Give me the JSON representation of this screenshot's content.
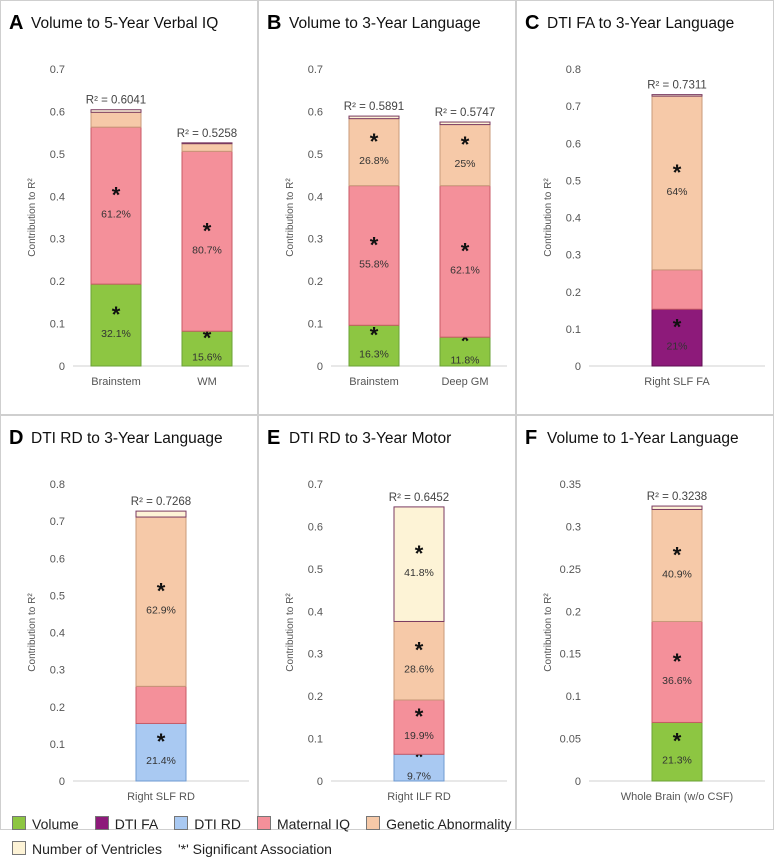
{
  "legend": {
    "items": [
      {
        "name": "Volume",
        "color": "#8dc642"
      },
      {
        "name": "DTI FA",
        "color": "#8d1a7a"
      },
      {
        "name": "DTI RD",
        "color": "#a9c9f2"
      },
      {
        "name": "Maternal IQ",
        "color": "#f4909a"
      },
      {
        "name": "Genetic Abnormality",
        "color": "#f6c9a8"
      },
      {
        "name": "Number of Ventricles",
        "color": "#fdf3d6"
      }
    ],
    "significance_note": "'*' Significant Association"
  },
  "chart_data": [
    {
      "letter": "A",
      "title": "Volume to 5-Year Verbal  IQ",
      "type": "bar",
      "ylabel": "Contribution to R²",
      "ylim": [
        0,
        0.7
      ],
      "yticks": [
        "0",
        "0.1",
        "0.2",
        "0.3",
        "0.4",
        "0.5",
        "0.6",
        "0.7"
      ],
      "bars": [
        {
          "category": "Brainstem",
          "r2_label": "R² = 0.6041",
          "segments": [
            {
              "factor": "Volume",
              "value": 0.193,
              "label": "32.1%",
              "significant": true
            },
            {
              "factor": "Maternal IQ",
              "value": 0.37,
              "label": "61.2%",
              "significant": true
            },
            {
              "factor": "Genetic Abnormality",
              "value": 0.035,
              "label": "",
              "significant": false
            },
            {
              "factor": "Number of Ventricles",
              "value": 0.006,
              "label": "",
              "significant": false
            }
          ]
        },
        {
          "category": "WM",
          "r2_label": "R² = 0.5258",
          "segments": [
            {
              "factor": "Volume",
              "value": 0.082,
              "label": "15.6%",
              "significant": true
            },
            {
              "factor": "Maternal IQ",
              "value": 0.424,
              "label": "80.7%",
              "significant": true
            },
            {
              "factor": "Genetic Abnormality",
              "value": 0.018,
              "label": "",
              "significant": false
            },
            {
              "factor": "Number of Ventricles",
              "value": 0.002,
              "label": "",
              "significant": false
            }
          ]
        }
      ]
    },
    {
      "letter": "B",
      "title": "Volume to 3-Year Language",
      "type": "bar",
      "ylabel": "Contribution to R²",
      "ylim": [
        0,
        0.7
      ],
      "yticks": [
        "0",
        "0.1",
        "0.2",
        "0.3",
        "0.4",
        "0.5",
        "0.6",
        "0.7"
      ],
      "bars": [
        {
          "category": "Brainstem",
          "r2_label": "R² = 0.5891",
          "segments": [
            {
              "factor": "Volume",
              "value": 0.096,
              "label": "16.3%",
              "significant": true
            },
            {
              "factor": "Maternal IQ",
              "value": 0.329,
              "label": "55.8%",
              "significant": true
            },
            {
              "factor": "Genetic Abnormality",
              "value": 0.158,
              "label": "26.8%",
              "significant": true
            },
            {
              "factor": "Number of Ventricles",
              "value": 0.006,
              "label": "",
              "significant": false
            }
          ]
        },
        {
          "category": "Deep GM",
          "r2_label": "R² = 0.5747",
          "segments": [
            {
              "factor": "Volume",
              "value": 0.068,
              "label": "11.8%",
              "significant": true
            },
            {
              "factor": "Maternal IQ",
              "value": 0.357,
              "label": "62.1%",
              "significant": true
            },
            {
              "factor": "Genetic Abnormality",
              "value": 0.144,
              "label": "25%",
              "significant": true
            },
            {
              "factor": "Number of Ventricles",
              "value": 0.006,
              "label": "",
              "significant": false
            }
          ]
        }
      ]
    },
    {
      "letter": "C",
      "title": "DTI FA to 3-Year Language",
      "type": "bar",
      "ylabel": "Contribution to R²",
      "ylim": [
        0,
        0.8
      ],
      "yticks": [
        "0",
        "0.1",
        "0.2",
        "0.3",
        "0.4",
        "0.5",
        "0.6",
        "0.7",
        "0.8"
      ],
      "bars": [
        {
          "category": "Right SLF FA",
          "r2_label": "R² = 0.7311",
          "segments": [
            {
              "factor": "DTI FA",
              "value": 0.153,
              "label": "21%",
              "significant": true
            },
            {
              "factor": "Maternal IQ",
              "value": 0.106,
              "label": "",
              "significant": false
            },
            {
              "factor": "Genetic Abnormality",
              "value": 0.468,
              "label": "64%",
              "significant": true
            },
            {
              "factor": "Number of Ventricles",
              "value": 0.004,
              "label": "",
              "significant": false
            }
          ]
        }
      ]
    },
    {
      "letter": "D",
      "title": "DTI RD to 3-Year Language",
      "type": "bar",
      "ylabel": "Contribution to R²",
      "ylim": [
        0,
        0.8
      ],
      "yticks": [
        "0",
        "0.1",
        "0.2",
        "0.3",
        "0.4",
        "0.5",
        "0.6",
        "0.7",
        "0.8"
      ],
      "bars": [
        {
          "category": "Right SLF RD",
          "r2_label": "R² = 0.7268",
          "segments": [
            {
              "factor": "DTI RD",
              "value": 0.155,
              "label": "21.4%",
              "significant": true
            },
            {
              "factor": "Maternal IQ",
              "value": 0.1,
              "label": "",
              "significant": false
            },
            {
              "factor": "Genetic Abnormality",
              "value": 0.456,
              "label": "62.9%",
              "significant": true
            },
            {
              "factor": "Number of Ventricles",
              "value": 0.016,
              "label": "",
              "significant": false
            }
          ]
        }
      ]
    },
    {
      "letter": "E",
      "title": "DTI RD to 3-Year Motor",
      "type": "bar",
      "ylabel": "Contribution to R²",
      "ylim": [
        0,
        0.7
      ],
      "yticks": [
        "0",
        "0.1",
        "0.2",
        "0.3",
        "0.4",
        "0.5",
        "0.6",
        "0.7"
      ],
      "bars": [
        {
          "category": "Right ILF RD",
          "r2_label": "R² = 0.6452",
          "segments": [
            {
              "factor": "DTI RD",
              "value": 0.063,
              "label": "9.7%",
              "significant": true
            },
            {
              "factor": "Maternal IQ",
              "value": 0.128,
              "label": "19.9%",
              "significant": true
            },
            {
              "factor": "Genetic Abnormality",
              "value": 0.185,
              "label": "28.6%",
              "significant": true
            },
            {
              "factor": "Number of Ventricles",
              "value": 0.27,
              "label": "41.8%",
              "significant": true
            }
          ]
        }
      ]
    },
    {
      "letter": "F",
      "title": "Volume to 1-Year Language",
      "type": "bar",
      "ylabel": "Contribution to R²",
      "ylim": [
        0,
        0.35
      ],
      "yticks": [
        "0",
        "0.05",
        "0.1",
        "0.15",
        "0.2",
        "0.25",
        "0.3",
        "0.35"
      ],
      "bars": [
        {
          "category": "Whole Brain (w/o CSF)",
          "r2_label": "R² = 0.3238",
          "segments": [
            {
              "factor": "Volume",
              "value": 0.069,
              "label": "21.3%",
              "significant": true
            },
            {
              "factor": "Maternal IQ",
              "value": 0.119,
              "label": "36.6%",
              "significant": true
            },
            {
              "factor": "Genetic Abnormality",
              "value": 0.132,
              "label": "40.9%",
              "significant": true
            },
            {
              "factor": "Number of Ventricles",
              "value": 0.004,
              "label": "",
              "significant": false
            }
          ]
        }
      ]
    }
  ]
}
